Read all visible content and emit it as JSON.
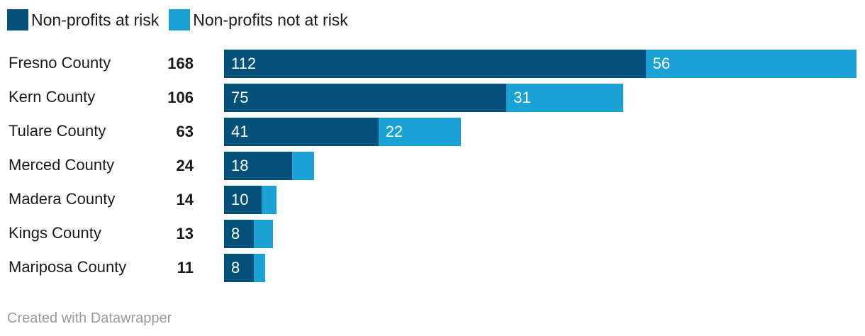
{
  "chart_data": {
    "type": "bar",
    "orientation": "horizontal",
    "stacked": true,
    "categories": [
      "Fresno County",
      "Kern County",
      "Tulare County",
      "Merced County",
      "Madera County",
      "Kings County",
      "Mariposa County"
    ],
    "totals": [
      168,
      106,
      63,
      24,
      14,
      13,
      11
    ],
    "series": [
      {
        "name": "Non-profits at risk",
        "color": "#03507b",
        "values": [
          112,
          75,
          41,
          18,
          10,
          8,
          8
        ],
        "labels": [
          "112",
          "75",
          "41",
          "18",
          "10",
          "8",
          "8"
        ]
      },
      {
        "name": "Non-profits not at risk",
        "color": "#19a2d3",
        "values": [
          56,
          31,
          22,
          6,
          4,
          5,
          3
        ],
        "labels": [
          "56",
          "31",
          "22",
          "",
          "",
          "",
          ""
        ]
      }
    ],
    "xlim": [
      0,
      168
    ],
    "legend_position": "top-left",
    "grid": false
  },
  "footer": {
    "credit": "Created with Datawrapper"
  }
}
